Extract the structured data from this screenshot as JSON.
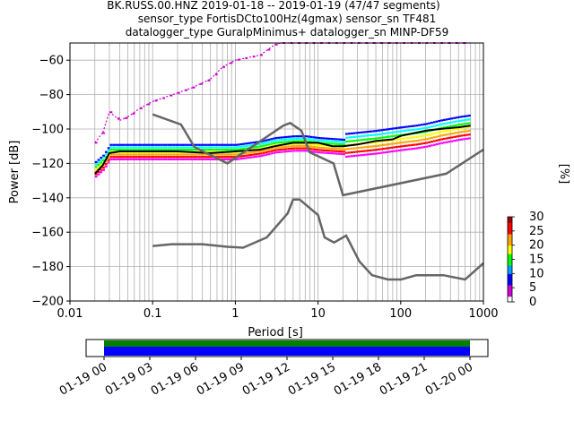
{
  "title_lines": [
    "BK.RUSS.00.HNZ   2019-01-18 -- 2019-01-19  (47/47 segments)",
    "sensor_type FortisDCto100Hz(4gmax) sensor_sn TF481",
    "datalogger_type GuralpMinimus+ datalogger_sn MINP-DF59"
  ],
  "chart_data": [
    {
      "type": "heatmap",
      "xlabel": "Period [s]",
      "ylabel": "Power [dB]",
      "x_scale": "log",
      "xlim": [
        0.01,
        1000
      ],
      "ylim": [
        -200,
        -50
      ],
      "x_ticks": [
        0.01,
        0.1,
        1,
        10,
        100,
        1000
      ],
      "x_tick_labels": [
        "0.01",
        "0.1",
        "1",
        "10",
        "100",
        "1000"
      ],
      "y_ticks": [
        -200,
        -180,
        -160,
        -140,
        -120,
        -100,
        -80,
        -60
      ],
      "y_tick_labels": [
        "−200",
        "−180",
        "−160",
        "−140",
        "−120",
        "−100",
        "−80",
        "−60"
      ],
      "grid": true,
      "colorbar": {
        "label": "[%]",
        "range": [
          0,
          30
        ],
        "ticks": [
          0,
          5,
          10,
          15,
          20,
          25,
          30
        ],
        "colormap": "pqlx"
      },
      "series": [
        {
          "style": "mode-black",
          "color": "#000000",
          "x": [
            0.02,
            0.025,
            0.03,
            0.04,
            0.05,
            0.07,
            0.1,
            0.2,
            0.5,
            1,
            2,
            3,
            5,
            7,
            10,
            15,
            20,
            30,
            50,
            80,
            100,
            200,
            300,
            500,
            700
          ],
          "y": [
            -126,
            -121,
            -114,
            -113,
            -113,
            -113,
            -113,
            -113,
            -114,
            -113,
            -112,
            -110,
            -108,
            -108,
            -108,
            -110,
            -110,
            -109,
            -107,
            -106,
            -104,
            -101,
            -100,
            -99,
            -98
          ]
        },
        {
          "style": "nlnm-gray",
          "color": "#666666",
          "x": [
            0.1,
            0.17,
            0.4,
            0.8,
            1.24,
            2.4,
            4.3,
            5,
            6,
            10,
            12,
            15.6,
            21.9,
            31.6,
            45,
            70,
            101,
            154,
            328,
            600,
            1000
          ],
          "y": [
            -168,
            -167,
            -167,
            -168.5,
            -169,
            -163,
            -149,
            -141,
            -141,
            -150,
            -163,
            -166,
            -162,
            -177,
            -185,
            -187.5,
            -187.5,
            -185,
            -185,
            -187.5,
            -178
          ]
        },
        {
          "style": "nhnm-gray",
          "color": "#666666",
          "x": [
            0.1,
            0.22,
            0.32,
            0.8,
            3.8,
            4.6,
            6.3,
            7.9,
            15.4,
            20,
            354.8,
            1000
          ],
          "y": [
            -91.5,
            -97.4,
            -110.5,
            -120,
            -98,
            -96.5,
            -101,
            -113.5,
            -120,
            -138.5,
            -126,
            -112
          ]
        },
        {
          "style": "upper-density-magenta",
          "color": "#d000d0",
          "x": [
            0.02,
            0.025,
            0.03,
            0.04,
            0.05,
            0.07,
            0.1,
            0.2,
            0.3,
            0.5,
            0.7,
            1,
            2,
            3,
            3.5,
            5,
            7,
            10,
            20,
            50,
            80,
            150,
            300,
            500,
            700
          ],
          "y": [
            -108,
            -102,
            -90,
            -95,
            -93,
            -88,
            -84,
            -79,
            -76,
            -71,
            -64,
            -60,
            -57,
            -51,
            -50,
            -50,
            -50,
            -50,
            -50,
            -50,
            -50,
            -50,
            -50,
            -50,
            -50
          ]
        },
        {
          "style": "density-band",
          "color": "#ff0000",
          "x": [
            0.02,
            0.025,
            0.03,
            0.05,
            0.1,
            0.5,
            1,
            2,
            3,
            5,
            7,
            10,
            20,
            50,
            100,
            150,
            200,
            300,
            500,
            700
          ],
          "y": [
            -125,
            -121,
            -115,
            -115,
            -115,
            -115,
            -115,
            -113,
            -111,
            -110,
            -110,
            -111,
            -112,
            -110,
            -108,
            -107,
            -106,
            -104,
            -102,
            -101
          ]
        }
      ]
    },
    {
      "type": "bar",
      "x_tick_labels": [
        "01-19 00",
        "01-19 03",
        "01-19 06",
        "01-19 09",
        "01-19 12",
        "01-19 15",
        "01-19 18",
        "01-19 21",
        "01-20 00"
      ],
      "series": [
        {
          "name": "",
          "color": "#008000",
          "x_start": "01-19 00",
          "x_end": "01-20 00"
        },
        {
          "name": "",
          "color": "#0000ff",
          "x_start": "01-19 00",
          "x_end": "01-20 00"
        }
      ]
    }
  ]
}
